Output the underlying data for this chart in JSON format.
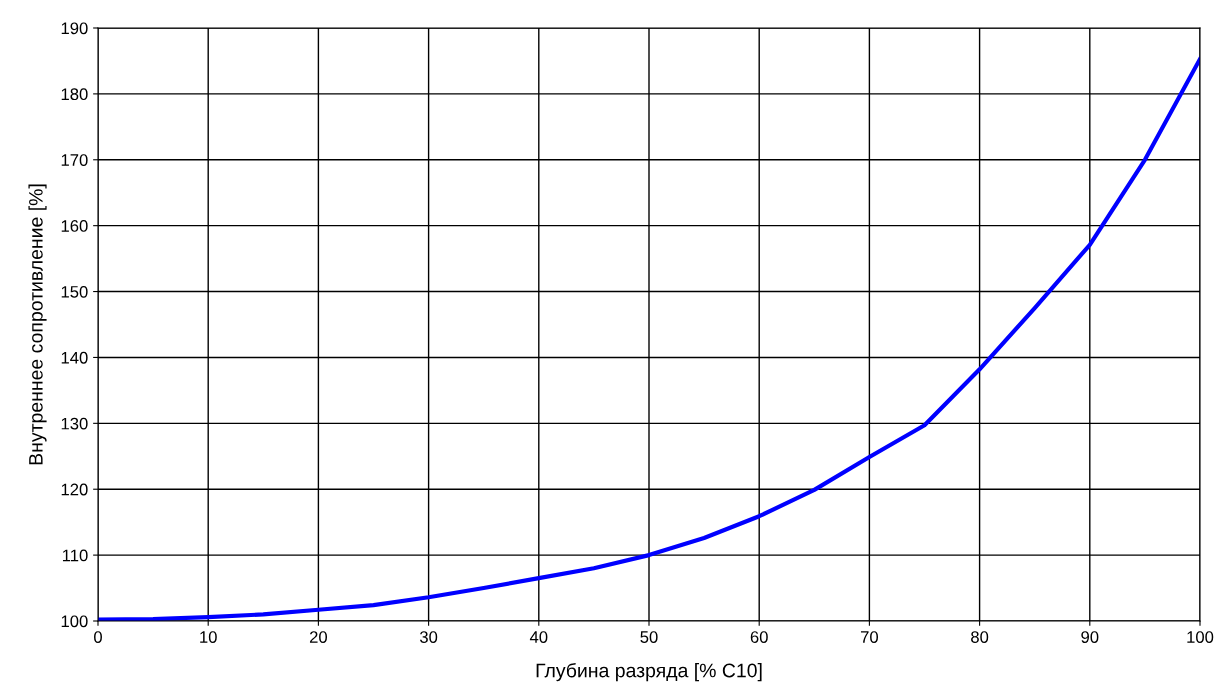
{
  "chart_data": {
    "type": "line",
    "xlabel": "Глубина разряда [% C10]",
    "ylabel": "Внутреннее сопротивление [%]",
    "x": [
      0,
      5,
      10,
      15,
      20,
      25,
      30,
      35,
      40,
      45,
      50,
      55,
      60,
      65,
      70,
      75,
      80,
      85,
      90,
      95,
      100
    ],
    "series": [
      {
        "color": "#0000ff",
        "values": [
          100.2,
          100.3,
          100.6,
          101.0,
          101.7,
          102.4,
          103.6,
          105.0,
          106.5,
          108.0,
          110.0,
          112.6,
          115.9,
          119.9,
          124.9,
          129.7,
          138.2,
          147.5,
          157.1,
          170.0,
          185.3
        ]
      }
    ],
    "xlim": [
      0,
      100
    ],
    "xticks": [
      0,
      10,
      20,
      30,
      40,
      50,
      60,
      70,
      80,
      90,
      100
    ],
    "ylim": [
      100,
      190
    ],
    "yticks": [
      100,
      110,
      120,
      130,
      140,
      150,
      160,
      170,
      180,
      190
    ],
    "grid": true,
    "legend": false,
    "marker": "none",
    "line_style": "solid"
  }
}
